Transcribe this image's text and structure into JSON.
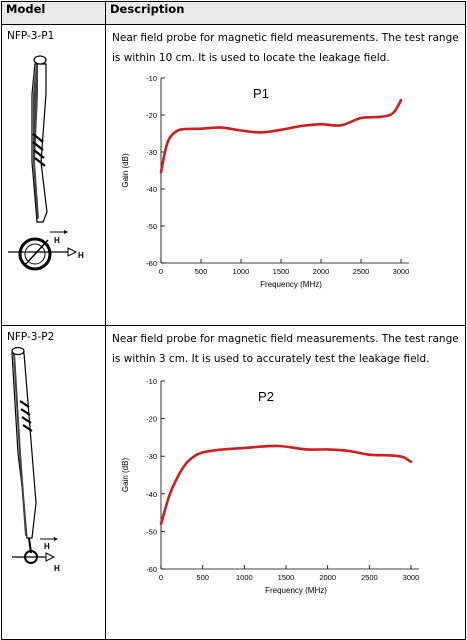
{
  "table": {
    "header_model": "Model",
    "header_description": "Description"
  },
  "rows": [
    {
      "model": "NFP-3-P1",
      "description": "Near field probe for magnetic field measurements. The test range is within 10 cm. It is used to locate the leakage field.",
      "probe_labels": [
        "H",
        "H"
      ]
    },
    {
      "model": "NFP-3-P2",
      "description": "Near field probe for magnetic field measurements. The test range is within 3 cm. It is used to accurately test the leakage field.",
      "probe_labels": [
        "H",
        "H"
      ]
    }
  ],
  "chart_data": [
    {
      "type": "line",
      "title": "P1",
      "xlabel": "Frequency (MHz)",
      "ylabel": "Gain (dB)",
      "xlim": [
        0,
        3000
      ],
      "ylim": [
        -60,
        -10
      ],
      "xticks": [
        0,
        500,
        1000,
        1500,
        2000,
        2500,
        3000
      ],
      "yticks": [
        -10,
        -20,
        -30,
        -40,
        -50,
        -60
      ],
      "line_color": "#cc1f1f",
      "series": [
        {
          "x": [
            0,
            50,
            100,
            200,
            300,
            500,
            750,
            1000,
            1250,
            1500,
            1750,
            2000,
            2250,
            2500,
            2750,
            2900,
            3000
          ],
          "y": [
            -35.5,
            -30,
            -26.5,
            -24.3,
            -23.8,
            -23.7,
            -23.4,
            -24.2,
            -24.7,
            -24,
            -23,
            -22.5,
            -22.8,
            -20.8,
            -20.5,
            -19.5,
            -16
          ]
        }
      ]
    },
    {
      "type": "line",
      "title": "P2",
      "xlabel": "Frequency (MHz)",
      "ylabel": "Gain (dB)",
      "xlim": [
        0,
        3000
      ],
      "ylim": [
        -60,
        -10
      ],
      "xticks": [
        0,
        500,
        1000,
        1500,
        2000,
        2500,
        3000
      ],
      "yticks": [
        -10,
        -20,
        -30,
        -40,
        -50,
        -60
      ],
      "line_color": "#cc1f1f",
      "series": [
        {
          "x": [
            0,
            100,
            200,
            300,
            400,
            500,
            700,
            1000,
            1400,
            1750,
            2000,
            2250,
            2500,
            2750,
            2900,
            3000
          ],
          "y": [
            -48,
            -40.5,
            -35.5,
            -32,
            -30,
            -29,
            -28.3,
            -27.8,
            -27.3,
            -28.2,
            -28.2,
            -28.6,
            -29.6,
            -29.8,
            -30.2,
            -31.5
          ]
        }
      ]
    }
  ]
}
